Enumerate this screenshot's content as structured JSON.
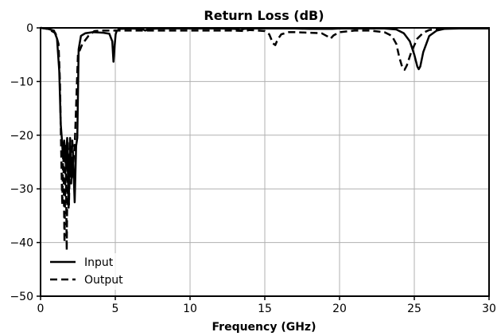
{
  "chart_data": {
    "type": "line",
    "title": "Return Loss (dB)",
    "xlabel": "Frequency (GHz)",
    "ylabel": "",
    "xlim": [
      0,
      30
    ],
    "ylim": [
      -50,
      0
    ],
    "xticks": [
      0,
      5,
      10,
      15,
      20,
      25,
      30
    ],
    "yticks": [
      0,
      -10,
      -20,
      -30,
      -40,
      -50
    ],
    "xtick_labels": [
      "0",
      "5",
      "10",
      "15",
      "20",
      "25",
      "30"
    ],
    "ytick_labels": [
      "0",
      "−10",
      "−20",
      "−30",
      "−40",
      "−50"
    ],
    "grid": true,
    "legend_position": "bottom-left",
    "series": [
      {
        "name": "Input",
        "style": "solid",
        "color": "#000000",
        "x": [
          0,
          0.5,
          0.9,
          1.1,
          1.25,
          1.35,
          1.42,
          1.5,
          1.58,
          1.68,
          1.78,
          1.88,
          1.98,
          2.08,
          2.18,
          2.28,
          2.38,
          2.46,
          2.55,
          2.7,
          3.0,
          3.5,
          4.2,
          4.6,
          4.8,
          4.88,
          4.95,
          5.02,
          5.1,
          5.3,
          6.0,
          6.8,
          7.0,
          7.2,
          8,
          10,
          12,
          13,
          13.4,
          13.6,
          14,
          15,
          15.5,
          16,
          17,
          18,
          19,
          19.5,
          20,
          21,
          22,
          23,
          23.8,
          24.3,
          24.7,
          25.0,
          25.2,
          25.3,
          25.4,
          25.6,
          26.0,
          26.5,
          27,
          28,
          29,
          30
        ],
        "y": [
          0,
          -0.2,
          -0.5,
          -2,
          -8,
          -18,
          -20.5,
          -24,
          -21,
          -25,
          -20.5,
          -33.5,
          -20.5,
          -28,
          -24.5,
          -32.5,
          -22,
          -20.5,
          -4,
          -1.5,
          -1,
          -0.8,
          -0.9,
          -1.1,
          -2.5,
          -6.3,
          -3.5,
          -1.2,
          -0.5,
          -0.2,
          -0.1,
          -0.2,
          -0.5,
          -0.2,
          -0.1,
          -0.1,
          -0.1,
          -0.2,
          -0.4,
          -0.2,
          -0.1,
          -0.1,
          -0.1,
          -0.1,
          -0.1,
          -0.2,
          -0.2,
          -0.2,
          -0.1,
          -0.1,
          -0.1,
          -0.1,
          -0.3,
          -1.0,
          -2.5,
          -5.0,
          -7.2,
          -7.7,
          -7.2,
          -4.5,
          -1.5,
          -0.5,
          -0.2,
          -0.1,
          -0.1,
          -0.1
        ]
      },
      {
        "name": "Output",
        "style": "dashed",
        "color": "#000000",
        "x": [
          0,
          0.5,
          1.0,
          1.2,
          1.3,
          1.38,
          1.45,
          1.52,
          1.6,
          1.68,
          1.75,
          1.82,
          1.9,
          1.98,
          2.05,
          2.12,
          2.2,
          2.3,
          2.5,
          2.8,
          3.2,
          3.6,
          4.0,
          5,
          6,
          7,
          10,
          13,
          13.6,
          14,
          15,
          15.3,
          15.55,
          15.7,
          15.85,
          16.1,
          16.6,
          17,
          18,
          18.8,
          19.2,
          19.4,
          19.6,
          20,
          21,
          22,
          23,
          23.5,
          23.8,
          24.0,
          24.2,
          24.35,
          24.5,
          24.8,
          25.2,
          25.6,
          26,
          26.5,
          27,
          28,
          30
        ],
        "y": [
          0,
          -0.2,
          -1,
          -3,
          -10,
          -22.5,
          -33,
          -22,
          -40,
          -22,
          -41.5,
          -21,
          -33,
          -22,
          -29,
          -21,
          -25,
          -21,
          -5,
          -3,
          -1.5,
          -0.6,
          -0.5,
          -0.5,
          -0.5,
          -0.5,
          -0.5,
          -0.5,
          -0.6,
          -0.4,
          -0.6,
          -1.2,
          -2.9,
          -3.2,
          -2.2,
          -1.2,
          -0.8,
          -0.8,
          -0.9,
          -1.0,
          -1.6,
          -2.0,
          -1.4,
          -0.8,
          -0.5,
          -0.5,
          -0.8,
          -1.5,
          -3.0,
          -5.5,
          -7.4,
          -7.8,
          -7.0,
          -4.5,
          -2.0,
          -0.9,
          -0.4,
          -0.2,
          -0.1,
          -0.1,
          -0.1
        ]
      }
    ]
  }
}
